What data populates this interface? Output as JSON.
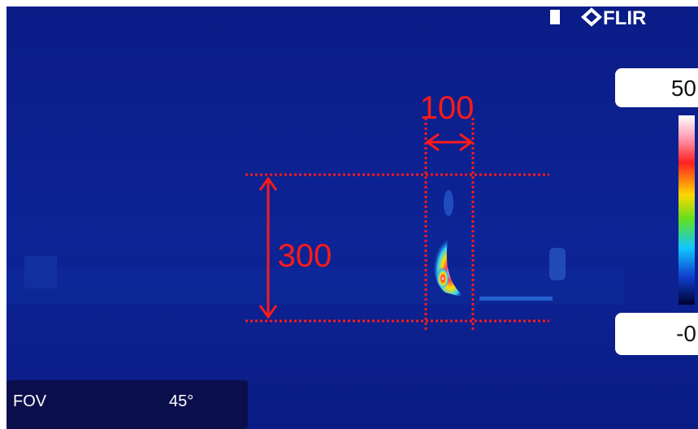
{
  "logo": "FLIR",
  "scale": {
    "max": "50",
    "min": "-0"
  },
  "annotations": {
    "width": "100",
    "height": "300"
  },
  "status": {
    "label": "FOV",
    "value": "45°"
  }
}
